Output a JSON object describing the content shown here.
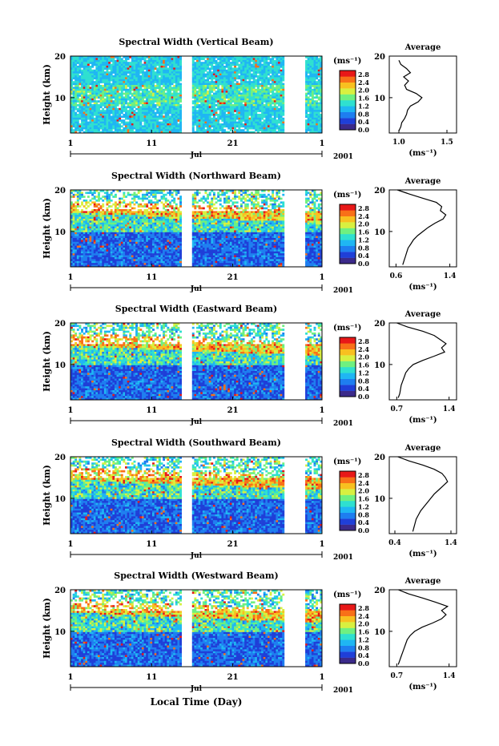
{
  "x_axis_label": "Local Time (Day)",
  "month_label": "Jul",
  "year_label": "2001",
  "x_ticks": [
    "1",
    "11",
    "21",
    "1"
  ],
  "colorbar": {
    "unit": "(ms⁻¹)",
    "ticks": [
      "0.0",
      "0.4",
      "0.8",
      "1.2",
      "1.6",
      "2.0",
      "2.4",
      "2.8"
    ],
    "colors": [
      "#3b2a8a",
      "#1f3fd8",
      "#1e7ef0",
      "#1fb6f3",
      "#2fe0d0",
      "#6ff080",
      "#d8f040",
      "#f8c020",
      "#f87018",
      "#e81818"
    ]
  },
  "chart_data": [
    {
      "type": "heatmap",
      "title": "Spectral Width (Vertical Beam)",
      "ylabel": "Height (km)",
      "y_ticks": [
        "10",
        "20"
      ],
      "xlim": [
        1,
        32
      ],
      "ylim": [
        1.5,
        20
      ],
      "data_gaps": [
        [
          14.8,
          16.0
        ],
        [
          27.3,
          30.0
        ]
      ],
      "color_range": [
        0.0,
        3.0
      ],
      "average_profile": {
        "title": "Average",
        "xlabel": "(ms⁻¹)",
        "x_ticks": [
          "1.0",
          "1.5"
        ],
        "xlim": [
          0.9,
          1.6
        ],
        "height": [
          2,
          3,
          4,
          5,
          6,
          7,
          8,
          9,
          10,
          11,
          12,
          13,
          14,
          15,
          16,
          17,
          18,
          19
        ],
        "value": [
          1.0,
          1.02,
          1.03,
          1.06,
          1.08,
          1.09,
          1.12,
          1.2,
          1.24,
          1.18,
          1.08,
          1.06,
          1.1,
          1.05,
          1.12,
          1.08,
          1.02,
          1.0
        ]
      }
    },
    {
      "type": "heatmap",
      "title": "Spectral Width (Northward Beam)",
      "ylabel": "Height (km)",
      "y_ticks": [
        "10",
        "20"
      ],
      "xlim": [
        1,
        32
      ],
      "ylim": [
        1.5,
        20
      ],
      "data_gaps": [
        [
          14.8,
          16.0
        ],
        [
          27.3,
          30.0
        ]
      ],
      "color_range": [
        0.0,
        3.0
      ],
      "average_profile": {
        "title": "Average",
        "xlabel": "(ms⁻¹)",
        "x_ticks": [
          "0.6",
          "1.4"
        ],
        "xlim": [
          0.5,
          1.5
        ],
        "height": [
          2,
          3,
          4,
          5,
          6,
          7,
          8,
          9,
          10,
          11,
          12,
          13,
          14,
          15,
          16,
          17,
          18,
          19,
          20
        ],
        "value": [
          0.7,
          0.72,
          0.74,
          0.76,
          0.78,
          0.82,
          0.86,
          0.92,
          1.0,
          1.08,
          1.18,
          1.3,
          1.34,
          1.26,
          1.28,
          1.2,
          1.0,
          0.8,
          0.62
        ]
      }
    },
    {
      "type": "heatmap",
      "title": "Spectral Width (Eastward Beam)",
      "ylabel": "Height (km)",
      "y_ticks": [
        "10",
        "20"
      ],
      "xlim": [
        1,
        32
      ],
      "ylim": [
        1.5,
        20
      ],
      "data_gaps": [
        [
          14.8,
          16.0
        ],
        [
          27.3,
          30.0
        ]
      ],
      "color_range": [
        0.0,
        3.0
      ],
      "average_profile": {
        "title": "Average",
        "xlabel": "(ms⁻¹)",
        "x_ticks": [
          "0.7",
          "1.4"
        ],
        "xlim": [
          0.6,
          1.5
        ],
        "height": [
          2,
          3,
          4,
          5,
          6,
          7,
          8,
          9,
          10,
          11,
          12,
          13,
          14,
          15,
          16,
          17,
          18,
          19,
          20
        ],
        "value": [
          0.72,
          0.74,
          0.75,
          0.76,
          0.78,
          0.8,
          0.82,
          0.86,
          0.92,
          1.05,
          1.2,
          1.34,
          1.3,
          1.36,
          1.28,
          1.2,
          1.05,
          0.85,
          0.7
        ]
      }
    },
    {
      "type": "heatmap",
      "title": "Spectral Width (Southward Beam)",
      "ylabel": "Height (km)",
      "y_ticks": [
        "10",
        "20"
      ],
      "xlim": [
        1,
        32
      ],
      "ylim": [
        1.5,
        20
      ],
      "data_gaps": [
        [
          14.8,
          16.0
        ],
        [
          27.3,
          30.0
        ]
      ],
      "color_range": [
        0.0,
        3.0
      ],
      "average_profile": {
        "title": "Average",
        "xlabel": "(ms⁻¹)",
        "x_ticks": [
          "0.4",
          "1.4"
        ],
        "xlim": [
          0.3,
          1.5
        ],
        "height": [
          2,
          3,
          4,
          5,
          6,
          7,
          8,
          9,
          10,
          11,
          12,
          13,
          14,
          15,
          16,
          17,
          18,
          19,
          20
        ],
        "value": [
          0.72,
          0.74,
          0.76,
          0.78,
          0.82,
          0.86,
          0.92,
          0.98,
          1.04,
          1.1,
          1.18,
          1.26,
          1.34,
          1.3,
          1.24,
          1.1,
          0.9,
          0.65,
          0.45
        ]
      }
    },
    {
      "type": "heatmap",
      "title": "Spectral Width (Westward Beam)",
      "ylabel": "Height (km)",
      "y_ticks": [
        "10",
        "20"
      ],
      "xlim": [
        1,
        32
      ],
      "ylim": [
        1.5,
        20
      ],
      "data_gaps": [
        [
          14.8,
          16.0
        ],
        [
          27.3,
          30.0
        ]
      ],
      "color_range": [
        0.0,
        3.0
      ],
      "average_profile": {
        "title": "Average",
        "xlabel": "(ms⁻¹)",
        "x_ticks": [
          "0.7",
          "1.4"
        ],
        "xlim": [
          0.6,
          1.5
        ],
        "height": [
          2,
          3,
          4,
          5,
          6,
          7,
          8,
          9,
          10,
          11,
          12,
          13,
          14,
          15,
          16,
          17,
          18,
          19,
          20
        ],
        "value": [
          0.72,
          0.74,
          0.76,
          0.78,
          0.8,
          0.82,
          0.84,
          0.88,
          0.94,
          1.04,
          1.18,
          1.3,
          1.36,
          1.3,
          1.38,
          1.22,
          1.05,
          0.86,
          0.72
        ]
      }
    }
  ]
}
